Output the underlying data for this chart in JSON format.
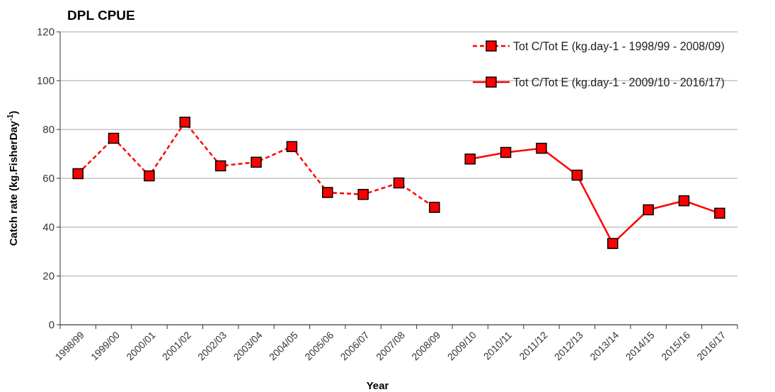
{
  "chart_data": {
    "type": "line",
    "title": "DPL CPUE",
    "xlabel": "Year",
    "ylabel": "Catch rate (kg.FisherDay$^{-1}$)",
    "categories": [
      "1998/99",
      "1999/00",
      "2000/01",
      "2001/02",
      "2002/03",
      "2003/04",
      "2004/05",
      "2005/06",
      "2006/07",
      "2007/08",
      "2008/09",
      "2009/10",
      "2010/11",
      "2011/12",
      "2012/13",
      "2013/14",
      "2014/15",
      "2015/16",
      "2016/17"
    ],
    "series": [
      {
        "name": "Tot C/Tot E (kg.day-1 - 1998/99 - 2008/09)",
        "color": "#ff0000",
        "line_style": "dashed",
        "values": [
          61.9,
          76.4,
          61.0,
          83.0,
          65.1,
          66.6,
          73.0,
          54.2,
          53.4,
          58.1,
          48.1,
          null,
          null,
          null,
          null,
          null,
          null,
          null,
          null
        ]
      },
      {
        "name": "Tot C/Tot E (kg.day-1 - 2009/10 - 2016/17)",
        "color": "#ff0000",
        "line_style": "solid",
        "values": [
          null,
          null,
          null,
          null,
          null,
          null,
          null,
          null,
          null,
          null,
          null,
          67.9,
          70.6,
          72.3,
          61.3,
          33.3,
          47.1,
          50.8,
          45.7
        ]
      }
    ],
    "ylim": [
      0,
      120
    ],
    "yticks": [
      0,
      20,
      40,
      60,
      80,
      100,
      120
    ],
    "grid": "y",
    "legend": "top right",
    "marker": "square"
  }
}
